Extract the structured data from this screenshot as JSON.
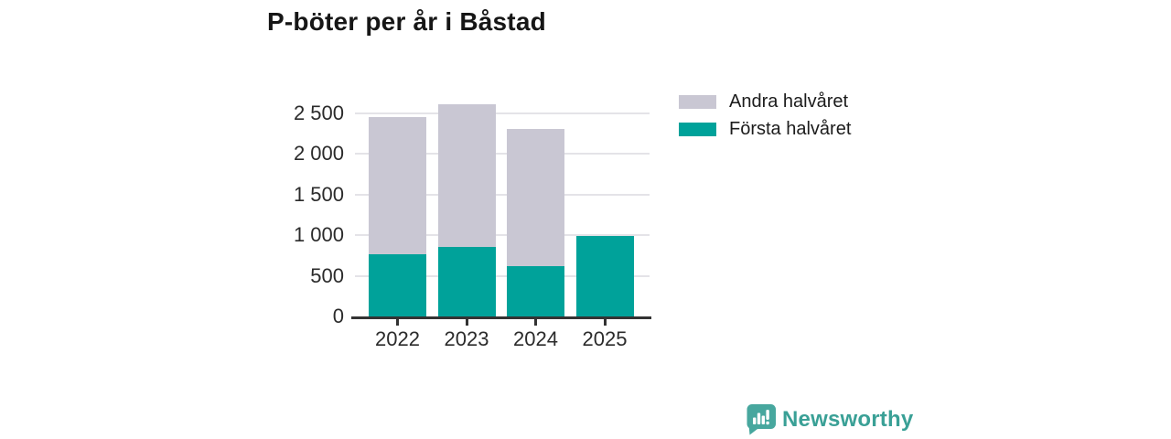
{
  "title": "P-böter per år i Båstad",
  "chart_data": {
    "type": "bar",
    "stacked": true,
    "title": "P-böter per år i Båstad",
    "categories": [
      "2022",
      "2023",
      "2024",
      "2025"
    ],
    "series": [
      {
        "name": "Första halvåret",
        "color": "#00a29a",
        "values": [
          770,
          860,
          615,
          990
        ]
      },
      {
        "name": "Andra halvåret",
        "color": "#c9c7d3",
        "values": [
          1680,
          1750,
          1690,
          0
        ]
      }
    ],
    "yticks": [
      0,
      500,
      1000,
      1500,
      2000,
      2500
    ],
    "ytick_labels": [
      "0",
      "500",
      "1 000",
      "1 500",
      "2 000",
      "2 500"
    ],
    "ylim": [
      0,
      2800
    ],
    "xlabel": "",
    "ylabel": "",
    "grid": "horizontal",
    "legend_position": "right-top"
  },
  "legend": {
    "items": [
      {
        "label": "Andra halvåret",
        "color": "#c9c7d3"
      },
      {
        "label": "Första halvåret",
        "color": "#00a29a"
      }
    ]
  },
  "footer": {
    "brand": "Newsworthy",
    "brand_color": "#3aa096",
    "logo_color": "#47a79e",
    "logo_icon": "bar-chart-speech-bubble-icon"
  },
  "colors": {
    "background": "#ffffff",
    "title_text": "#161616",
    "axis_line": "#333333",
    "gridline": "#e4e3e8",
    "tick_text": "#2b2b2b"
  }
}
